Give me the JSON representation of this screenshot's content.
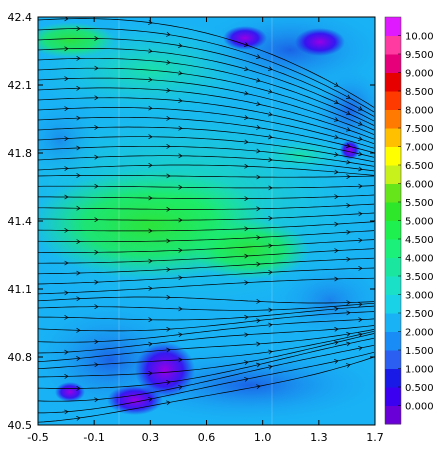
{
  "chart_data": {
    "type": "heatmap",
    "title": "",
    "xlabel": "",
    "ylabel": "",
    "x_ticks": [
      "-0.5",
      "-0.1",
      "0.3",
      "0.6",
      "1.0",
      "1.3",
      "1.7"
    ],
    "y_ticks": [
      "42.4",
      "42.1",
      "41.8",
      "41.4",
      "41.1",
      "40.8",
      "40.5"
    ],
    "xlim": [
      -0.5,
      1.7
    ],
    "ylim": [
      40.5,
      42.4
    ],
    "overlay": "streamlines with arrows, flow from west to east",
    "colorbar": {
      "labels": [
        "0.000",
        "0.500",
        "1.000",
        "1.500",
        "2.000",
        "2.500",
        "3.000",
        "3.500",
        "4.000",
        "4.500",
        "5.000",
        "5.500",
        "6.000",
        "6.500",
        "7.000",
        "7.500",
        "8.000",
        "8.500",
        "9.000",
        "9.500",
        "10.00"
      ],
      "colors": [
        "#6a00d8",
        "#3b00f0",
        "#1a1ae6",
        "#2a5ff2",
        "#1a8cf5",
        "#19b2f5",
        "#1ad2e8",
        "#1ae0c8",
        "#1ae6a0",
        "#1af07a",
        "#1ef050",
        "#2ee62a",
        "#66e61a",
        "#c8f01a",
        "#ffff00",
        "#ffc000",
        "#ff7a00",
        "#ff3a00",
        "#e60000",
        "#e6007a",
        "#ff3aa0",
        "#e01aff"
      ]
    }
  }
}
